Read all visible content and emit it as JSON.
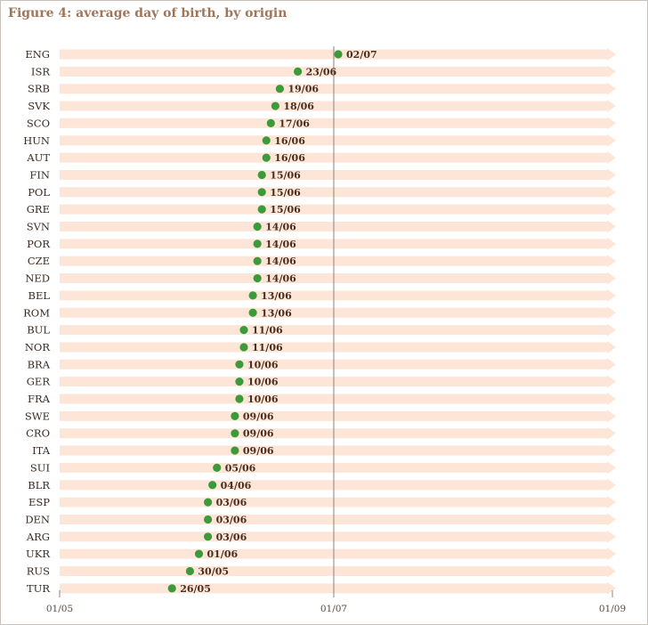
{
  "title": "Figure 4: average day of birth, by origin",
  "chart_data": {
    "type": "scatter",
    "title": "Figure 4: average day of birth, by origin",
    "x_axis": {
      "type": "date",
      "min": "01/05",
      "max": "01/09",
      "ticks": [
        "01/05",
        "01/07",
        "01/09"
      ]
    },
    "reference_line": "01/07",
    "categories": [
      "ENG",
      "ISR",
      "SRB",
      "SVK",
      "SCO",
      "HUN",
      "AUT",
      "FIN",
      "POL",
      "GRE",
      "SVN",
      "POR",
      "CZE",
      "NED",
      "BEL",
      "ROM",
      "BUL",
      "NOR",
      "BRA",
      "GER",
      "FRA",
      "SWE",
      "CRO",
      "ITA",
      "SUI",
      "BLR",
      "ESP",
      "DEN",
      "ARG",
      "UKR",
      "RUS",
      "TUR"
    ],
    "values": [
      "02/07",
      "23/06",
      "19/06",
      "18/06",
      "17/06",
      "16/06",
      "16/06",
      "15/06",
      "15/06",
      "15/06",
      "14/06",
      "14/06",
      "14/06",
      "14/06",
      "13/06",
      "13/06",
      "11/06",
      "11/06",
      "10/06",
      "10/06",
      "10/06",
      "09/06",
      "09/06",
      "09/06",
      "05/06",
      "04/06",
      "03/06",
      "03/06",
      "03/06",
      "01/06",
      "30/05",
      "26/05"
    ],
    "colors": {
      "point": "#3d9a3b",
      "band": "#fde6d8",
      "title": "#a0765a",
      "value_label": "#4a2e1e"
    }
  }
}
